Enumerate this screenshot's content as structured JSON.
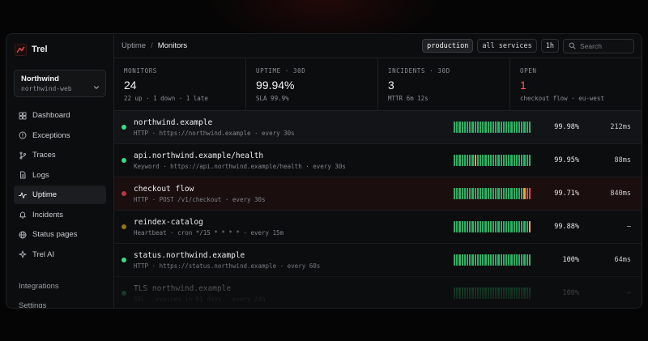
{
  "colors": {
    "up": "#3ddc84",
    "bar_up": "#2fae66",
    "bar_warn": "#e8a838",
    "bar_down": "#e5484d",
    "down": "#e5484d",
    "paused": "#c9a227"
  },
  "brand": {
    "name": "Trel"
  },
  "workspace": {
    "name": "Northwind",
    "project": "northwind-web"
  },
  "nav": [
    {
      "label": "Dashboard",
      "icon": "grid-icon"
    },
    {
      "label": "Exceptions",
      "icon": "alert-circle-icon"
    },
    {
      "label": "Traces",
      "icon": "branch-icon"
    },
    {
      "label": "Logs",
      "icon": "file-icon"
    },
    {
      "label": "Uptime",
      "icon": "pulse-icon",
      "active": true
    },
    {
      "label": "Incidents",
      "icon": "bell-icon"
    },
    {
      "label": "Status pages",
      "icon": "globe-icon"
    },
    {
      "label": "Trel AI",
      "icon": "sparkle-icon"
    }
  ],
  "nav_secondary": [
    "Integrations",
    "Settings"
  ],
  "breadcrumb": {
    "parent": "Uptime",
    "sep": "/",
    "current": "Monitors"
  },
  "filters": {
    "env": "production",
    "service": "all services",
    "range": "1h"
  },
  "search": {
    "placeholder": "Search"
  },
  "stats": [
    {
      "label": "MONITORS",
      "value": "24",
      "sub": "22 up · 1 down · 1 late"
    },
    {
      "label": "UPTIME · 30D",
      "value": "99.94%",
      "sub": "SLA 99.9%"
    },
    {
      "label": "INCIDENTS · 30D",
      "value": "3",
      "sub": "MTTR 6m 12s"
    },
    {
      "label": "OPEN",
      "value": "1",
      "sub": "checkout flow · eu-west"
    }
  ],
  "monitors": [
    {
      "name": "northwind.example",
      "meta": "HTTP · https://northwind.example · every 30s",
      "status": "up",
      "uptime": "99.98%",
      "latency": "212ms",
      "bars": "uuuuuuuuuuuuuuuuuuuuuuuuuuuuuu"
    },
    {
      "name": "api.northwind.example/health",
      "meta": "Keyword · https://api.northwind.example/health · every 30s",
      "status": "up",
      "uptime": "99.95%",
      "latency": "88ms",
      "bars": "uuuuuuuuwuuuuuuuuuuuuuuuuuuuuu"
    },
    {
      "name": "checkout flow",
      "meta": "HTTP · POST /v1/checkout · every 30s",
      "status": "down",
      "uptime": "99.71%",
      "latency": "840ms",
      "bars": "uuuuuuuuuuuuuuuuuuuuuuuuuuuwdd"
    },
    {
      "name": "reindex-catalog",
      "meta": "Heartbeat · cron */15 * * * * · every 15m",
      "status": "paused",
      "uptime": "99.88%",
      "latency": "—",
      "bars": "uuuuuuuuuuuuuuuuuuuuuuuuuuuuuw"
    },
    {
      "name": "status.northwind.example",
      "meta": "HTTP · https://status.northwind.example · every 60s",
      "status": "up",
      "uptime": "100%",
      "latency": "64ms",
      "bars": "uuuuuuuuuuuuuuuuuuuuuuuuuuuuuu"
    },
    {
      "name": "TLS northwind.example",
      "meta": "SSL · expires in 61 days · every 24h",
      "status": "up",
      "uptime": "100%",
      "latency": "—",
      "bars": "uuuuuuuuuuuuuuuuuuuuuuuuuuuuuu"
    }
  ]
}
